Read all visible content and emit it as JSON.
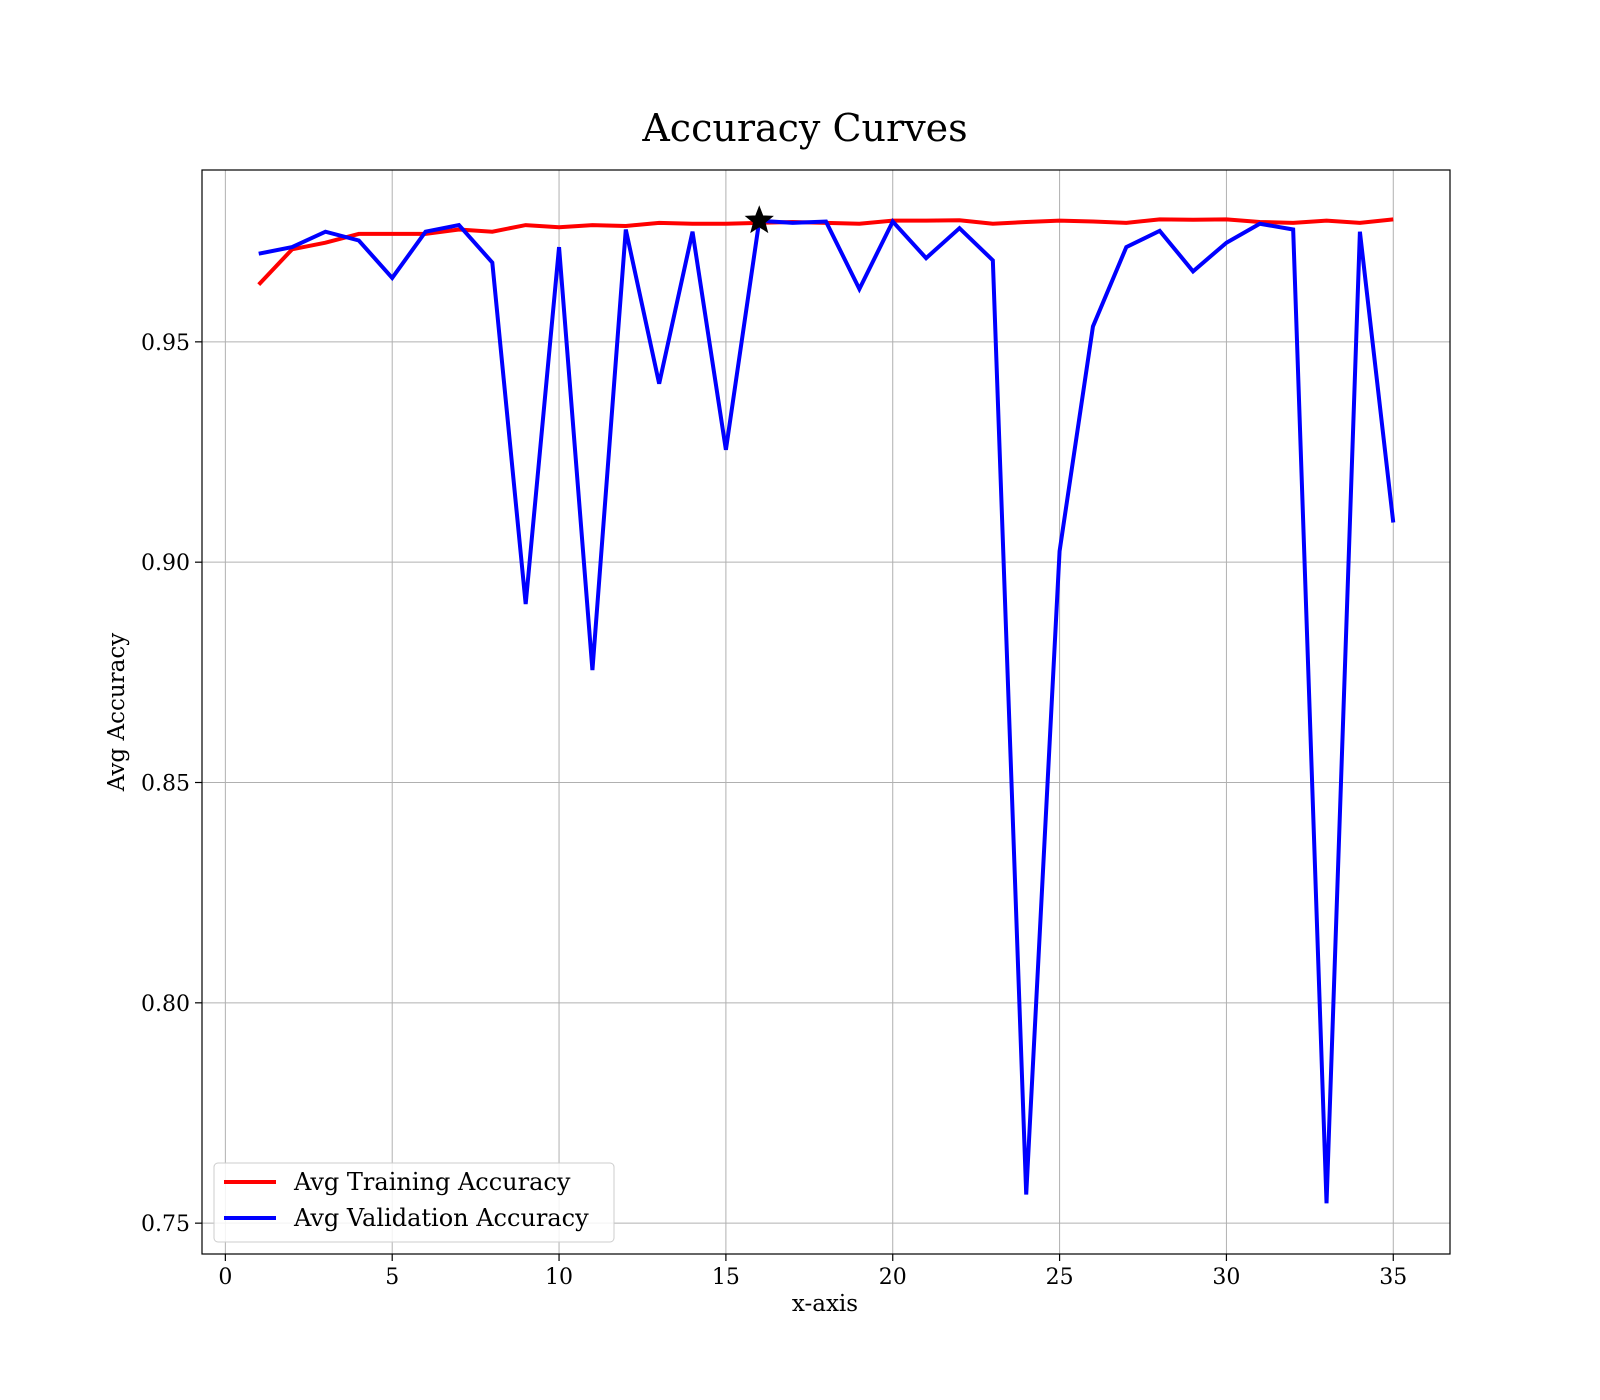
{
  "chart_data": {
    "type": "line",
    "title": "Accuracy Curves",
    "xlabel": "x-axis",
    "ylabel": "Avg Accuracy",
    "xlim": [
      -0.7,
      36.7
    ],
    "ylim": [
      0.743,
      0.989
    ],
    "xticks": [
      0,
      5,
      10,
      15,
      20,
      25,
      30,
      35
    ],
    "yticks": [
      0.75,
      0.8,
      0.85,
      0.9,
      0.95
    ],
    "ytick_labels": [
      "0.75",
      "0.80",
      "0.85",
      "0.90",
      "0.95"
    ],
    "grid": true,
    "legend_position": "lower-left",
    "x": [
      1,
      2,
      3,
      4,
      5,
      6,
      7,
      8,
      9,
      10,
      11,
      12,
      13,
      14,
      15,
      16,
      17,
      18,
      19,
      20,
      21,
      22,
      23,
      24,
      25,
      26,
      27,
      28,
      29,
      30,
      31,
      32,
      33,
      34,
      35
    ],
    "series": [
      {
        "name": "Avg Training Accuracy",
        "color": "#ff0000",
        "values": [
          0.963,
          0.971,
          0.9725,
          0.9745,
          0.9745,
          0.9745,
          0.9755,
          0.975,
          0.9765,
          0.976,
          0.9765,
          0.9763,
          0.977,
          0.9768,
          0.9768,
          0.977,
          0.9772,
          0.977,
          0.9768,
          0.9775,
          0.9775,
          0.9776,
          0.9768,
          0.9772,
          0.9775,
          0.9773,
          0.977,
          0.9778,
          0.9777,
          0.9778,
          0.9772,
          0.977,
          0.9775,
          0.977,
          0.9778
        ]
      },
      {
        "name": "Avg Validation Accuracy",
        "color": "#0000ff",
        "values": [
          0.97,
          0.9715,
          0.975,
          0.973,
          0.9645,
          0.975,
          0.9765,
          0.968,
          0.8905,
          0.9715,
          0.8755,
          0.9755,
          0.9405,
          0.975,
          0.9255,
          0.9775,
          0.977,
          0.9773,
          0.962,
          0.9773,
          0.969,
          0.9758,
          0.9685,
          0.7565,
          0.9025,
          0.9535,
          0.9715,
          0.9752,
          0.966,
          0.9725,
          0.9768,
          0.9755,
          0.7545,
          0.975,
          0.909
        ]
      }
    ],
    "marker": {
      "shape": "star",
      "x": 16,
      "y": 0.9775,
      "color": "#000000"
    }
  }
}
